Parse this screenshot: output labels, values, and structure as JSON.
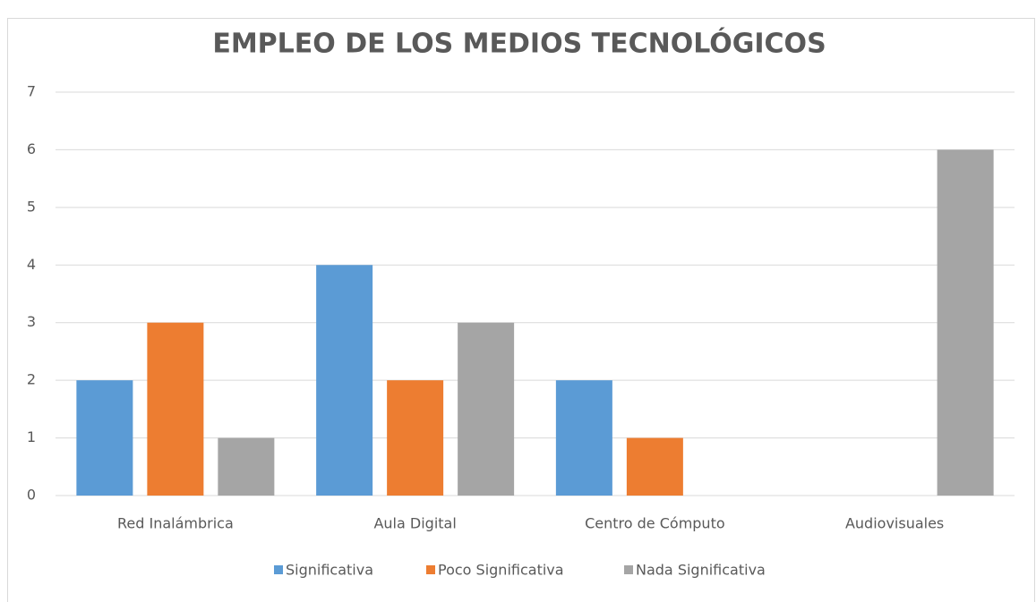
{
  "chart_data": {
    "type": "bar",
    "title": "EMPLEO DE LOS MEDIOS TECNOLÓGICOS",
    "categories": [
      "Red Inalámbrica",
      "Aula Digital",
      "Centro de Cómputo",
      "Audiovisuales"
    ],
    "series": [
      {
        "name": "Significativa",
        "color": "#5b9bd5",
        "values": [
          2,
          4,
          2,
          0
        ]
      },
      {
        "name": "Poco Significativa",
        "color": "#ed7d31",
        "values": [
          3,
          2,
          1,
          0
        ]
      },
      {
        "name": "Nada Significativa",
        "color": "#a5a5a5",
        "values": [
          1,
          3,
          0,
          6
        ]
      }
    ],
    "ylim": [
      0,
      7
    ],
    "yticks": [
      0,
      1,
      2,
      3,
      4,
      5,
      6,
      7
    ],
    "grid": true,
    "legend": "bottom"
  }
}
